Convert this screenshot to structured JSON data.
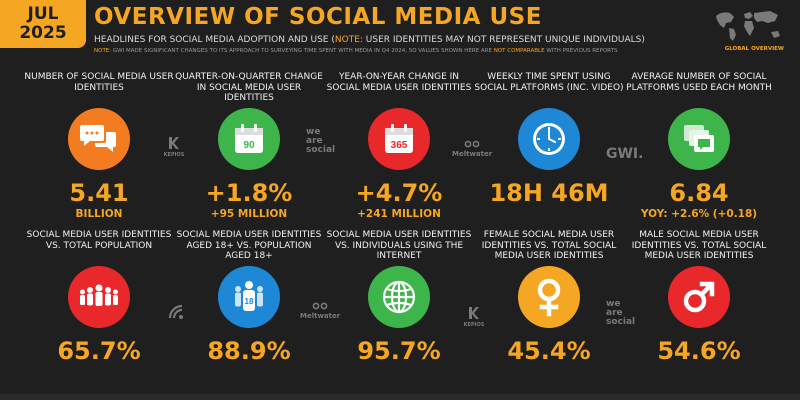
{
  "header": {
    "month": "JUL",
    "year": "2025",
    "title": "OVERVIEW OF SOCIAL MEDIA USE",
    "subtitle_a": "HEADLINES FOR SOCIAL MEDIA ADOPTION AND USE (",
    "subtitle_note": "NOTE:",
    "subtitle_b": " USER IDENTITIES MAY NOT REPRESENT UNIQUE INDIVIDUALS)",
    "note_label": "NOTE:",
    "note_text_a": " GWI MADE SIGNIFICANT CHANGES TO ITS APPROACH TO SURVEYING TIME SPENT WITH MEDIA IN Q4 2024, SO VALUES SHOWN HERE ARE ",
    "note_highlight": "NOT COMPARABLE",
    "note_text_b": " WITH PREVIOUS REPORTS",
    "region_label": "GLOBAL OVERVIEW"
  },
  "stats": [
    {
      "label": "NUMBER OF SOCIAL MEDIA USER IDENTITIES",
      "value": "5.41",
      "sub": "BILLION",
      "color": "#f47c20",
      "icon": "chat-bubbles-icon"
    },
    {
      "label": "QUARTER-ON-QUARTER CHANGE IN SOCIAL MEDIA USER IDENTITIES",
      "value": "+1.8%",
      "sub": "+95 MILLION",
      "color": "#3db54a",
      "icon": "calendar-90-icon",
      "icon_text": "90"
    },
    {
      "label": "YEAR-ON-YEAR CHANGE IN SOCIAL MEDIA USER IDENTITIES",
      "value": "+4.7%",
      "sub": "+241 MILLION",
      "color": "#e8282b",
      "icon": "calendar-365-icon",
      "icon_text": "365"
    },
    {
      "label": "WEEKLY TIME SPENT USING SOCIAL PLATFORMS (INC. VIDEO)",
      "value": "18H 46M",
      "sub": "",
      "color": "#1e88d6",
      "icon": "clock-icon"
    },
    {
      "label": "AVERAGE NUMBER OF SOCIAL PLATFORMS USED EACH MONTH",
      "value": "6.84",
      "sub": "YOY: +2.6% (+0.18)",
      "color": "#3db54a",
      "icon": "stacked-windows-icon"
    },
    {
      "label": "SOCIAL MEDIA USER IDENTITIES vs. TOTAL POPULATION",
      "value": "65.7%",
      "sub": "",
      "color": "#e8282b",
      "icon": "people-group-icon"
    },
    {
      "label": "SOCIAL MEDIA USER IDENTITIES AGED 18+ vs. POPULATION AGED 18+",
      "value": "88.9%",
      "sub": "",
      "color": "#1e88d6",
      "icon": "people-18-icon",
      "icon_text": "18"
    },
    {
      "label": "SOCIAL MEDIA USER IDENTITIES vs. INDIVIDUALS USING THE INTERNET",
      "value": "95.7%",
      "sub": "",
      "color": "#3db54a",
      "icon": "globe-icon"
    },
    {
      "label": "FEMALE SOCIAL MEDIA USER IDENTITIES vs. TOTAL SOCIAL MEDIA USER IDENTITIES",
      "value": "45.4%",
      "sub": "",
      "color": "#f5a623",
      "icon": "female-symbol-icon"
    },
    {
      "label": "MALE SOCIAL MEDIA USER IDENTITIES vs. TOTAL SOCIAL MEDIA USER IDENTITIES",
      "value": "54.6%",
      "sub": "",
      "color": "#e8282b",
      "icon": "male-symbol-icon"
    }
  ],
  "sources": {
    "kepios": "KEPIOS",
    "meltwater": "Meltwater",
    "wearesocial_1": "we",
    "wearesocial_2": "are",
    "wearesocial_3": "social",
    "gwi": "GWI."
  }
}
